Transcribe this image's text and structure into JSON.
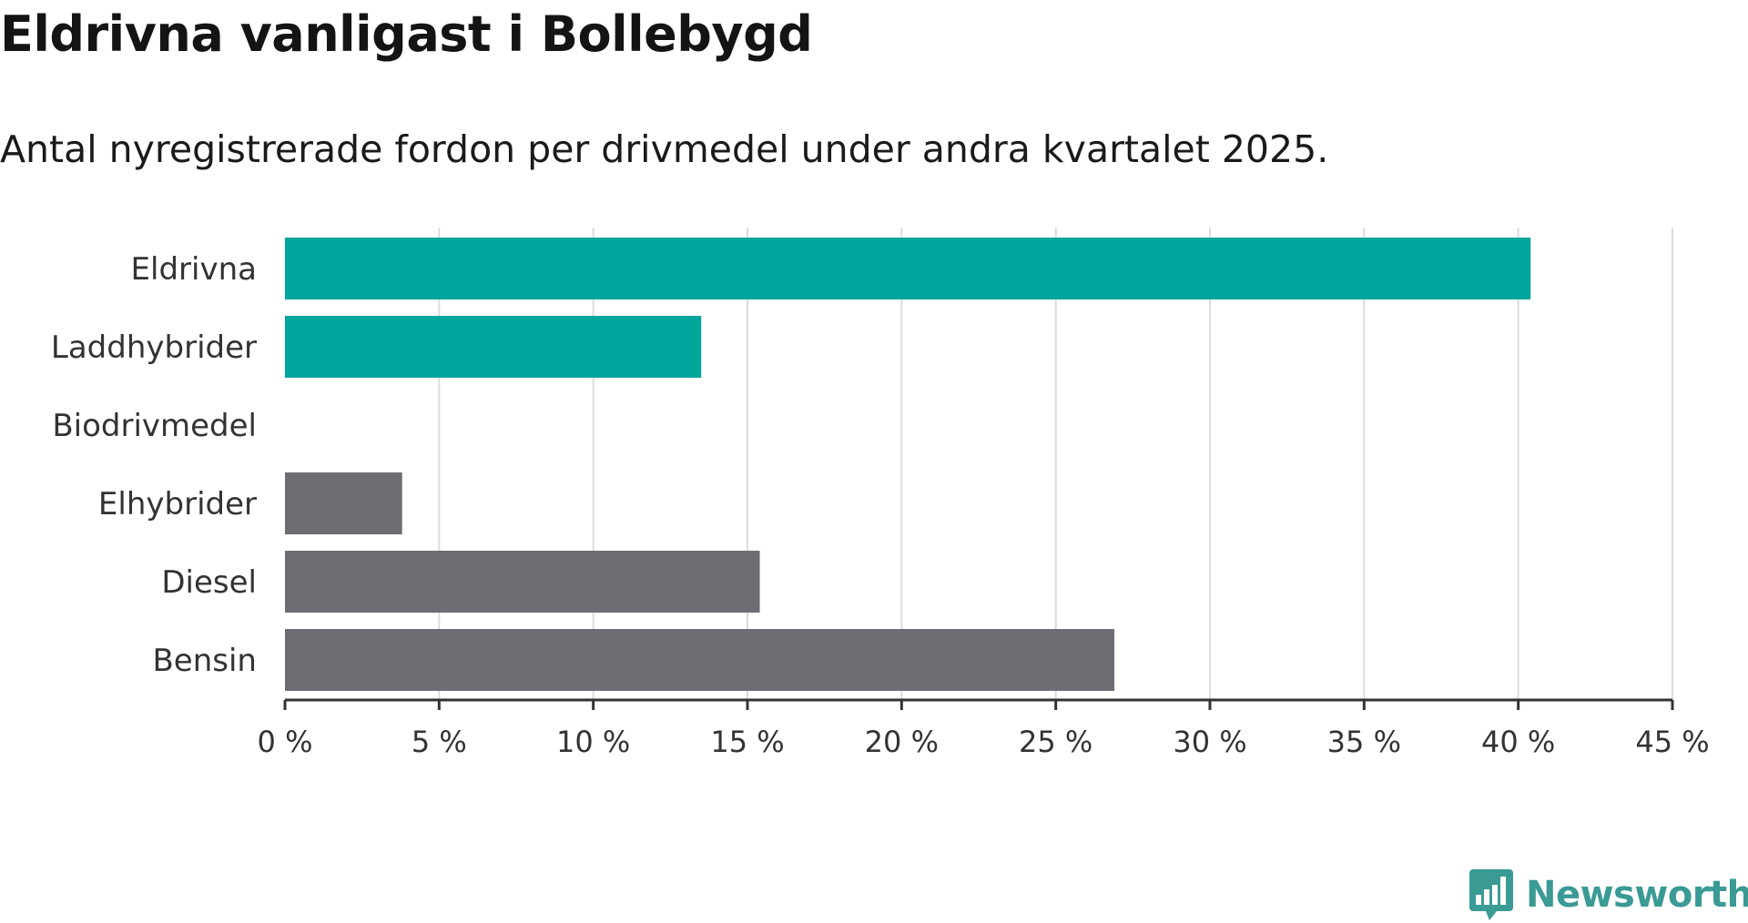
{
  "chart_data": {
    "type": "bar",
    "orientation": "horizontal",
    "title": "Eldrivna vanligast i Bollebygd",
    "subtitle": "Antal nyregistrerade fordon per drivmedel under andra kvartalet 2025.",
    "categories": [
      "Eldrivna",
      "Laddhybrider",
      "Biodrivmedel",
      "Elhybrider",
      "Diesel",
      "Bensin"
    ],
    "values": [
      40.4,
      13.5,
      0,
      3.8,
      15.4,
      26.9
    ],
    "colors": [
      "#00a59b",
      "#00a59b",
      "#00a59b",
      "#6e6d74",
      "#6e6d74",
      "#6e6d74"
    ],
    "xlim": [
      0,
      45
    ],
    "xticks": [
      0,
      5,
      10,
      15,
      20,
      25,
      30,
      35,
      40,
      45
    ],
    "tick_labels": [
      "0 %",
      "5 %",
      "10 %",
      "15 %",
      "20 %",
      "25 %",
      "30 %",
      "35 %",
      "40 %",
      "45 %"
    ],
    "xlabel": "",
    "ylabel": "",
    "grid": true,
    "legend": "none"
  },
  "brand": {
    "name": "Newsworthy",
    "icon": "newsworthy-logo-icon",
    "color": "#3a9a94"
  }
}
